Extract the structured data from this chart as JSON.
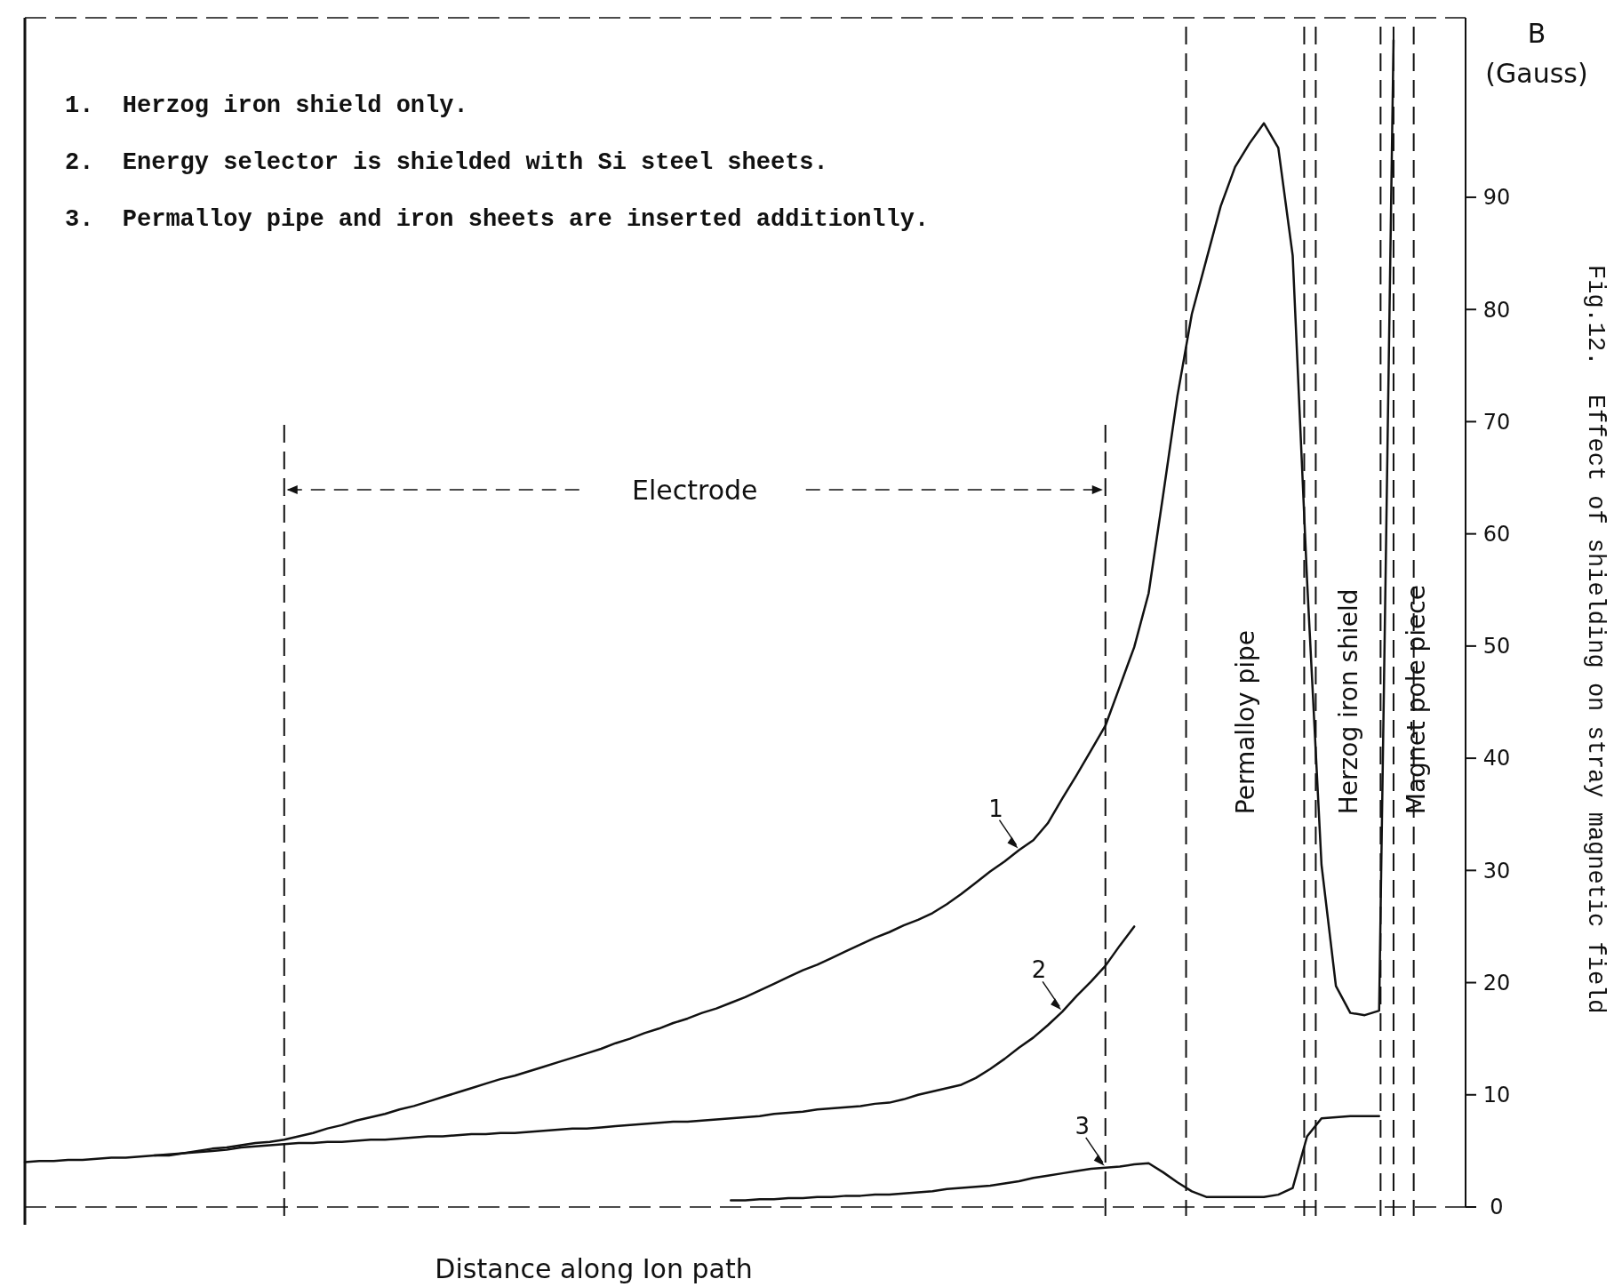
{
  "chart_data": {
    "type": "line",
    "title": "Fig.12.  Effect of shielding on stray magnetic field",
    "xlabel": "Distance along Ion path",
    "ylabel": "B\n(Gauss)",
    "categories": [
      null,
      null,
      null,
      null,
      null,
      null,
      null,
      null,
      null,
      null,
      null,
      null,
      null,
      null,
      null,
      null,
      null,
      null,
      null,
      null,
      null,
      null,
      null,
      null,
      null,
      null,
      null,
      null,
      null,
      null,
      null,
      null,
      null,
      null,
      null,
      null,
      null,
      null,
      null,
      null,
      null,
      null,
      null,
      null,
      null,
      null,
      null,
      null,
      null,
      null,
      null,
      null,
      null,
      null,
      null,
      null,
      null,
      null,
      null,
      null,
      null,
      null,
      null,
      null,
      null,
      null,
      null,
      null,
      null,
      null,
      null,
      null,
      null,
      null,
      null,
      null,
      null,
      null,
      null,
      null,
      null,
      null,
      null,
      null,
      null,
      null,
      null,
      null,
      null,
      null,
      null,
      null,
      null,
      null,
      null,
      null,
      null,
      null,
      null,
      null,
      null
    ],
    "ylim": [
      0,
      106
    ],
    "yticks": [
      0,
      10,
      20,
      30,
      40,
      50,
      60,
      70,
      80,
      90
    ],
    "grid": false,
    "marker": "none",
    "line_style": "solid",
    "series": [
      {
        "name": "1",
        "color": "#111111",
        "values": [
          4.0,
          4.1,
          4.1,
          4.2,
          4.2,
          4.3,
          4.4,
          4.4,
          4.5,
          4.6,
          4.6,
          4.8,
          5.0,
          5.2,
          5.3,
          5.5,
          5.7,
          5.8,
          6.0,
          6.3,
          6.6,
          7.0,
          7.3,
          7.7,
          8.0,
          8.3,
          8.7,
          9.0,
          9.4,
          9.8,
          10.2,
          10.6,
          11.0,
          11.4,
          11.7,
          12.1,
          12.5,
          12.9,
          13.3,
          13.7,
          14.1,
          14.6,
          15.0,
          15.5,
          15.9,
          16.4,
          16.8,
          17.3,
          17.7,
          18.2,
          18.7,
          19.3,
          19.9,
          20.5,
          21.1,
          21.6,
          22.2,
          22.8,
          23.4,
          24.0,
          24.5,
          25.1,
          25.6,
          26.2,
          27.0,
          27.9,
          28.9,
          29.9,
          30.8,
          31.8,
          32.7,
          34.2,
          36.4,
          38.5,
          40.7,
          42.9,
          46.4,
          49.9,
          54.7,
          63.4,
          72.3,
          79.6,
          84.4,
          89.2,
          92.7,
          94.8,
          96.6,
          94.4,
          84.8,
          55.8,
          30.5,
          19.7,
          17.3,
          17.1,
          17.5,
          104,
          null,
          null,
          null,
          null,
          null
        ]
      },
      {
        "name": "2",
        "color": "#111111",
        "values": [
          null,
          null,
          null,
          null,
          null,
          null,
          null,
          null,
          null,
          4.6,
          4.7,
          4.8,
          4.9,
          5.0,
          5.1,
          5.3,
          5.4,
          5.5,
          5.6,
          5.7,
          5.7,
          5.8,
          5.8,
          5.9,
          6.0,
          6.0,
          6.1,
          6.2,
          6.3,
          6.3,
          6.4,
          6.5,
          6.5,
          6.6,
          6.6,
          6.7,
          6.8,
          6.9,
          7.0,
          7.0,
          7.1,
          7.2,
          7.3,
          7.4,
          7.5,
          7.6,
          7.6,
          7.7,
          7.8,
          7.9,
          8.0,
          8.1,
          8.3,
          8.4,
          8.5,
          8.7,
          8.8,
          8.9,
          9.0,
          9.2,
          9.3,
          9.6,
          10.0,
          10.3,
          10.6,
          10.9,
          11.5,
          12.3,
          13.2,
          14.2,
          15.1,
          16.2,
          17.4,
          18.8,
          20.1,
          21.5,
          23.3,
          25.0,
          null,
          null,
          null,
          null,
          null,
          null,
          null,
          null,
          null,
          null,
          null,
          null,
          null,
          null,
          null,
          null,
          null,
          null,
          null,
          null,
          null,
          null,
          null
        ]
      },
      {
        "name": "3",
        "color": "#111111",
        "values": [
          null,
          null,
          null,
          null,
          null,
          null,
          null,
          null,
          null,
          null,
          null,
          null,
          null,
          null,
          null,
          null,
          null,
          null,
          null,
          null,
          null,
          null,
          null,
          null,
          null,
          null,
          null,
          null,
          null,
          null,
          null,
          null,
          null,
          null,
          null,
          null,
          null,
          null,
          null,
          null,
          null,
          null,
          null,
          null,
          null,
          null,
          null,
          null,
          null,
          0.6,
          0.6,
          0.7,
          0.7,
          0.8,
          0.8,
          0.9,
          0.9,
          1.0,
          1.0,
          1.1,
          1.1,
          1.2,
          1.3,
          1.4,
          1.6,
          1.7,
          1.8,
          1.9,
          2.1,
          2.3,
          2.6,
          2.8,
          3.0,
          3.2,
          3.4,
          3.5,
          3.6,
          3.8,
          3.9,
          3.1,
          2.2,
          1.4,
          0.9,
          0.9,
          0.9,
          0.9,
          0.9,
          1.1,
          1.7,
          6.3,
          7.9,
          8.0,
          8.1,
          8.1,
          8.1,
          null,
          null,
          null,
          null,
          null,
          null
        ]
      }
    ],
    "annotations": [
      "1.  Herzog iron shield only.",
      "2.  Energy selector is shielded with Si steel sheets.",
      "3.  Permalloy pipe and iron sheets are inserted additionlly.",
      "Electrode",
      "Permalloy pipe",
      "Herzog iron shield",
      "Magnet pole piece"
    ]
  }
}
